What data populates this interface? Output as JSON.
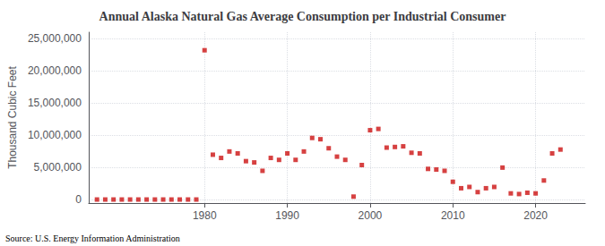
{
  "chart_data": {
    "type": "scatter",
    "title": "Annual Alaska Natural Gas Average Consumption per Industrial Consumer",
    "ylabel": "Thousand Cubic Feet",
    "annotation": "Source: U.S. Energy Information Administration",
    "color": "#cc1111",
    "marker": "square",
    "x": [
      1967,
      1968,
      1969,
      1970,
      1971,
      1972,
      1973,
      1974,
      1975,
      1976,
      1977,
      1978,
      1979,
      1980,
      1981,
      1982,
      1983,
      1984,
      1985,
      1986,
      1987,
      1988,
      1989,
      1990,
      1991,
      1992,
      1993,
      1994,
      1995,
      1996,
      1997,
      1998,
      1999,
      2000,
      2001,
      2002,
      2003,
      2004,
      2005,
      2006,
      2007,
      2008,
      2009,
      2010,
      2011,
      2012,
      2013,
      2014,
      2015,
      2016,
      2017,
      2018,
      2019,
      2020,
      2021,
      2022,
      2023
    ],
    "values": [
      50000,
      50000,
      50000,
      50000,
      50000,
      50000,
      50000,
      50000,
      50000,
      50000,
      50000,
      50000,
      50000,
      23200000,
      7000000,
      6500000,
      7500000,
      7200000,
      6000000,
      5800000,
      4500000,
      6500000,
      6200000,
      7200000,
      6200000,
      7500000,
      9600000,
      9400000,
      8000000,
      6700000,
      6200000,
      500000,
      5400000,
      10800000,
      11000000,
      8100000,
      8200000,
      8300000,
      7300000,
      7200000,
      4800000,
      4700000,
      4500000,
      2800000,
      1800000,
      2000000,
      1200000,
      1800000,
      2000000,
      5000000,
      1000000,
      900000,
      1100000,
      1000000,
      3000000,
      7200000,
      7800000
    ],
    "xlim": [
      1966,
      2026
    ],
    "xticks": [
      1980,
      1990,
      2000,
      2010,
      2020
    ],
    "ylim": [
      -500000,
      26000000
    ],
    "yticks": [
      0,
      {
        "value": 5000000,
        "label": "5,000,000"
      },
      {
        "value": 10000000,
        "label": "10,000,000"
      },
      {
        "value": 15000000,
        "label": "15,000,000"
      },
      {
        "value": 20000000,
        "label": "20,000,000"
      },
      {
        "value": 25000000,
        "label": "25,000,000"
      }
    ],
    "grid": true
  }
}
